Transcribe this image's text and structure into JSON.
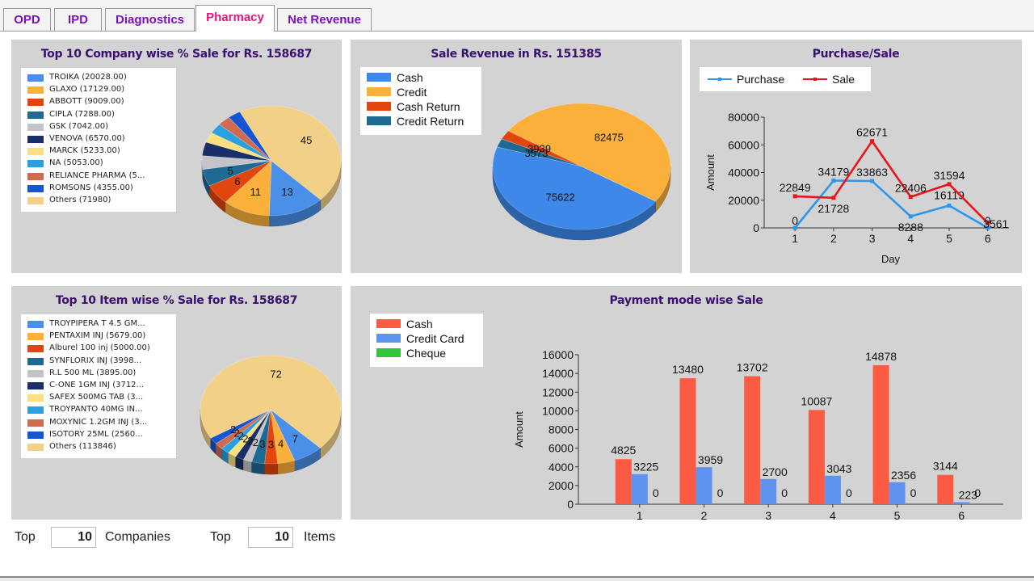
{
  "tabs": [
    "OPD",
    "IPD",
    "Diagnostics",
    "Pharmacy",
    "Net Revenue"
  ],
  "active_tab": "Pharmacy",
  "colors": {
    "tab_text": "#7a14b8",
    "tab_active": "#e3137c",
    "title": "#3a1070",
    "panel_bg": "#d3d3d3"
  },
  "bottom": {
    "top_label_1": "Top",
    "companies_value": "10",
    "companies_label": "Companies",
    "top_label_2": "Top",
    "items_value": "10",
    "items_label": "Items"
  },
  "chart_data": [
    {
      "type": "pie",
      "title": "Top 10 Company wise % Sale for Rs. 158687",
      "legend": [
        {
          "label": "TROIKA (20028.00)",
          "color": "#4a8fe8"
        },
        {
          "label": "GLAXO (17129.00)",
          "color": "#fbb03b"
        },
        {
          "label": "ABBOTT (9009.00)",
          "color": "#e2460f"
        },
        {
          "label": "CIPLA (7288.00)",
          "color": "#1f6a93"
        },
        {
          "label": "GSK (7042.00)",
          "color": "#c4c4c8"
        },
        {
          "label": "VENOVA (6570.00)",
          "color": "#1a2f66"
        },
        {
          "label": "MARCK (5233.00)",
          "color": "#fbe07f"
        },
        {
          "label": "NA (5053.00)",
          "color": "#2aa0de"
        },
        {
          "label": "RELIANCE  PHARMA (5...",
          "color": "#cf6b4f"
        },
        {
          "label": "ROMSONS (4355.00)",
          "color": "#1555d4"
        },
        {
          "label": "Others (71980)",
          "color": "#f3d088"
        }
      ],
      "values": [
        13,
        11,
        6,
        5,
        4,
        4,
        3,
        3,
        3,
        3,
        45
      ],
      "data_labels": [
        "13",
        "11",
        "6",
        "5",
        "",
        "",
        "",
        "",
        "",
        "",
        "45"
      ]
    },
    {
      "type": "pie",
      "title": "Sale Revenue in Rs. 151385",
      "legend": [
        {
          "label": "Cash",
          "color": "#3d88e8"
        },
        {
          "label": "Credit",
          "color": "#fbb03b"
        },
        {
          "label": "Cash Return",
          "color": "#e2460f"
        },
        {
          "label": "Credit Return",
          "color": "#1f6a93"
        }
      ],
      "values": [
        75622,
        82475,
        3939,
        3573
      ],
      "data_labels": [
        "75622",
        "82475",
        "3939",
        "3573"
      ]
    },
    {
      "type": "line",
      "title": "Purchase/Sale",
      "xlabel": "Day",
      "ylabel": "Amount",
      "ylim": [
        0,
        80000
      ],
      "yticks": [
        0,
        20000,
        40000,
        60000,
        80000
      ],
      "x": [
        1,
        2,
        3,
        4,
        5,
        6
      ],
      "series": [
        {
          "name": "Purchase",
          "color": "#2b96ee",
          "values": [
            0,
            34179,
            33863,
            8288,
            16119,
            0
          ],
          "labels": [
            "0",
            "34179",
            "33863",
            "8288",
            "16119",
            "0"
          ]
        },
        {
          "name": "Sale",
          "color": "#e8141e",
          "values": [
            22849,
            21728,
            62671,
            22406,
            31594,
            3561
          ],
          "labels": [
            "22849",
            "21728",
            "62671",
            "22406",
            "31594",
            "3561"
          ]
        }
      ]
    },
    {
      "type": "pie",
      "title": "Top 10 Item wise % Sale for Rs. 158687",
      "legend": [
        {
          "label": "TROYPIPERA T 4.5 GM...",
          "color": "#4a8fe8"
        },
        {
          "label": "PENTAXIM INJ (5679.00)",
          "color": "#fbb03b"
        },
        {
          "label": "Alburel 100 inj (5000.00)",
          "color": "#e2460f"
        },
        {
          "label": "SYNFLORIX  INJ (3998...",
          "color": "#1f6a93"
        },
        {
          "label": "R.L 500 ML (3895.00)",
          "color": "#c4c4c8"
        },
        {
          "label": "C-ONE 1GM INJ (3712...",
          "color": "#1a2f66"
        },
        {
          "label": "SAFEX  500MG TAB (3...",
          "color": "#fbe07f"
        },
        {
          "label": "TROYPANTO 40MG IN...",
          "color": "#2aa0de"
        },
        {
          "label": "MOXYNIC 1.2GM INJ (3...",
          "color": "#cf6b4f"
        },
        {
          "label": "ISOTORY  25ML (2560...",
          "color": "#1555d4"
        },
        {
          "label": "Others (113846)",
          "color": "#f3d088"
        }
      ],
      "values": [
        7,
        4,
        3,
        3,
        2,
        2,
        2,
        2,
        2,
        2,
        72
      ],
      "data_labels": [
        "7",
        "4",
        "3",
        "3",
        "2",
        "2",
        "2",
        "2",
        "2",
        "2",
        "72"
      ]
    },
    {
      "type": "bar",
      "title": "Payment mode wise Sale",
      "xlabel": "Day",
      "ylabel": "Amount",
      "ylim": [
        0,
        16000
      ],
      "yticks": [
        0,
        2000,
        4000,
        6000,
        8000,
        10000,
        12000,
        14000,
        16000
      ],
      "categories": [
        "1",
        "2",
        "3",
        "4",
        "5",
        "6"
      ],
      "series": [
        {
          "name": "Cash",
          "color": "#fb5a43",
          "values": [
            4825,
            13480,
            13702,
            10087,
            14878,
            3144
          ]
        },
        {
          "name": "Credit Card",
          "color": "#5f93ef",
          "values": [
            3225,
            3959,
            2700,
            3043,
            2356,
            223
          ]
        },
        {
          "name": "Cheque",
          "color": "#32c43a",
          "values": [
            0,
            0,
            0,
            0,
            0,
            0
          ]
        }
      ]
    }
  ]
}
